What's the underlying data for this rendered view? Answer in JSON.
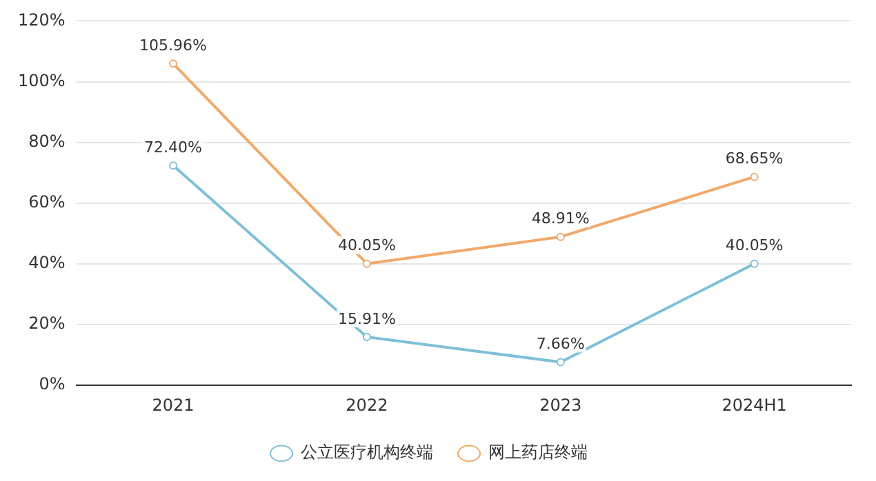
{
  "chart_data": {
    "type": "line",
    "categories": [
      "2021",
      "2022",
      "2023",
      "2024H1"
    ],
    "series": [
      {
        "name": "公立医疗机构终端",
        "color": "#7fbfd9",
        "values": [
          72.4,
          15.91,
          7.66,
          40.05
        ],
        "value_labels": [
          "72.40%",
          "15.91%",
          "7.66%",
          "40.05%"
        ]
      },
      {
        "name": "网上药店终端",
        "color": "#f0a96b",
        "values": [
          105.96,
          40.05,
          48.91,
          68.65
        ],
        "value_labels": [
          "105.96%",
          "40.05%",
          "48.91%",
          "68.65%"
        ]
      }
    ],
    "ylim": [
      0,
      120
    ],
    "yticks": [
      {
        "value": 0,
        "label": "0%"
      },
      {
        "value": 20,
        "label": "20%"
      },
      {
        "value": 40,
        "label": "40%"
      },
      {
        "value": 60,
        "label": "60%"
      },
      {
        "value": 80,
        "label": "80%"
      },
      {
        "value": 100,
        "label": "100%"
      },
      {
        "value": 120,
        "label": "120%"
      }
    ],
    "grid": "y",
    "legend": "bottom",
    "marker": "circle",
    "line_style": "solid"
  }
}
